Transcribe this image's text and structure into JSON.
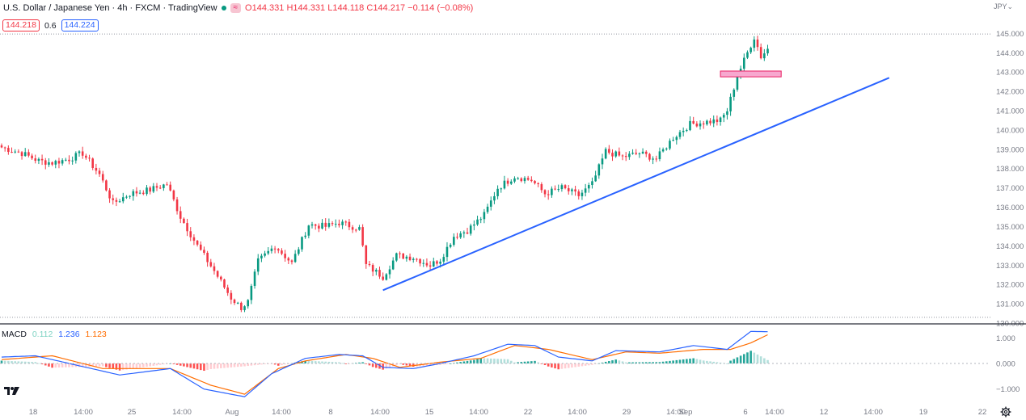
{
  "header": {
    "symbol_title": "U.S. Dollar / Japanese Yen · 4h · FXCM · TradingView",
    "indicator_pill": "≈",
    "ohlc": [
      {
        "k": "O",
        "v": "144.331"
      },
      {
        "k": "H",
        "v": "144.331"
      },
      {
        "k": "L",
        "v": "144.118"
      },
      {
        "k": "C",
        "v": "144.217"
      },
      {
        "k": "",
        "v": "−0.114 (−0.08%)"
      }
    ],
    "bid": "144.218",
    "spread": "0.6",
    "ask": "144.224",
    "currency": "JPY"
  },
  "macd_legend": {
    "name": "MACD",
    "hist": "0.112",
    "macd": "1.236",
    "signal": "1.123"
  },
  "chart_data": {
    "type": "candlestick",
    "symbol": "USD/JPY",
    "interval": "4h",
    "price_axis": {
      "ticks": [
        "145.000",
        "144.000",
        "143.000",
        "142.000",
        "141.000",
        "140.000",
        "139.000",
        "138.000",
        "137.000",
        "136.000",
        "135.000",
        "134.000",
        "133.000",
        "132.000",
        "131.000",
        "130.000"
      ],
      "ylim": [
        130.0,
        145.6
      ]
    },
    "macd_axis": {
      "ticks": [
        "1.000",
        "0.000",
        "−1.000"
      ],
      "ylim": [
        -1.45,
        1.45
      ]
    },
    "time_axis_labels": [
      "18",
      "14:00",
      "25",
      "14:00",
      "Aug",
      "14:00",
      "8",
      "14:00",
      "15",
      "14:00",
      "22",
      "14:00",
      "29",
      "14:00",
      "Sep",
      "6",
      "14:00",
      "12",
      "14:00",
      "19",
      "22"
    ],
    "anchors": [
      {
        "bar": 0,
        "p": 139.1
      },
      {
        "bar": 6,
        "p": 138.8
      },
      {
        "bar": 11,
        "p": 138.4
      },
      {
        "bar": 15,
        "p": 138.3
      },
      {
        "bar": 20,
        "p": 138.5
      },
      {
        "bar": 24,
        "p": 138.8
      },
      {
        "bar": 29,
        "p": 137.7
      },
      {
        "bar": 33,
        "p": 136.2
      },
      {
        "bar": 38,
        "p": 136.7
      },
      {
        "bar": 44,
        "p": 136.9
      },
      {
        "bar": 49,
        "p": 137.2
      },
      {
        "bar": 53,
        "p": 135.5
      },
      {
        "bar": 58,
        "p": 134.0
      },
      {
        "bar": 63,
        "p": 132.7
      },
      {
        "bar": 68,
        "p": 131.3
      },
      {
        "bar": 71,
        "p": 130.8
      },
      {
        "bar": 73,
        "p": 131.1
      },
      {
        "bar": 76,
        "p": 133.2
      },
      {
        "bar": 81,
        "p": 134.0
      },
      {
        "bar": 86,
        "p": 133.1
      },
      {
        "bar": 91,
        "p": 135.1
      },
      {
        "bar": 96,
        "p": 135.0
      },
      {
        "bar": 100,
        "p": 135.2
      },
      {
        "bar": 106,
        "p": 134.9
      },
      {
        "bar": 108,
        "p": 133.0
      },
      {
        "bar": 113,
        "p": 132.4
      },
      {
        "bar": 117,
        "p": 133.5
      },
      {
        "bar": 122,
        "p": 133.4
      },
      {
        "bar": 127,
        "p": 133.0
      },
      {
        "bar": 130,
        "p": 133.3
      },
      {
        "bar": 134,
        "p": 134.5
      },
      {
        "bar": 138,
        "p": 134.8
      },
      {
        "bar": 143,
        "p": 135.6
      },
      {
        "bar": 147,
        "p": 137.0
      },
      {
        "bar": 152,
        "p": 137.6
      },
      {
        "bar": 157,
        "p": 137.4
      },
      {
        "bar": 161,
        "p": 136.7
      },
      {
        "bar": 166,
        "p": 137.0
      },
      {
        "bar": 171,
        "p": 136.6
      },
      {
        "bar": 175,
        "p": 137.2
      },
      {
        "bar": 179,
        "p": 138.9
      },
      {
        "bar": 184,
        "p": 138.6
      },
      {
        "bar": 189,
        "p": 138.8
      },
      {
        "bar": 194,
        "p": 138.5
      },
      {
        "bar": 199,
        "p": 139.6
      },
      {
        "bar": 204,
        "p": 140.3
      },
      {
        "bar": 208,
        "p": 140.4
      },
      {
        "bar": 213,
        "p": 140.5
      },
      {
        "bar": 215,
        "p": 141.0
      },
      {
        "bar": 218,
        "p": 142.8
      },
      {
        "bar": 221,
        "p": 144.0
      },
      {
        "bar": 223,
        "p": 144.8
      },
      {
        "bar": 225,
        "p": 143.8
      },
      {
        "bar": 227,
        "p": 144.2
      }
    ],
    "bar_count": 228,
    "bar_axis_range": [
      0,
      293
    ],
    "macd_anchors": {
      "macd": [
        [
          0,
          0.25
        ],
        [
          10,
          0.3
        ],
        [
          20,
          0.0
        ],
        [
          35,
          -0.45
        ],
        [
          50,
          -0.2
        ],
        [
          60,
          -1.0
        ],
        [
          72,
          -1.3
        ],
        [
          80,
          -0.4
        ],
        [
          90,
          0.2
        ],
        [
          100,
          0.35
        ],
        [
          107,
          0.3
        ],
        [
          113,
          -0.15
        ],
        [
          122,
          -0.2
        ],
        [
          130,
          0.0
        ],
        [
          140,
          0.3
        ],
        [
          150,
          0.75
        ],
        [
          158,
          0.7
        ],
        [
          165,
          0.25
        ],
        [
          175,
          0.1
        ],
        [
          182,
          0.5
        ],
        [
          195,
          0.45
        ],
        [
          205,
          0.7
        ],
        [
          215,
          0.55
        ],
        [
          222,
          1.25
        ],
        [
          227,
          1.24
        ]
      ],
      "signal": [
        [
          0,
          0.15
        ],
        [
          15,
          0.3
        ],
        [
          30,
          -0.2
        ],
        [
          50,
          -0.2
        ],
        [
          62,
          -0.85
        ],
        [
          72,
          -1.2
        ],
        [
          82,
          -0.2
        ],
        [
          90,
          0.1
        ],
        [
          102,
          0.35
        ],
        [
          110,
          0.2
        ],
        [
          118,
          -0.15
        ],
        [
          130,
          0.05
        ],
        [
          142,
          0.2
        ],
        [
          152,
          0.7
        ],
        [
          162,
          0.55
        ],
        [
          175,
          0.15
        ],
        [
          185,
          0.45
        ],
        [
          195,
          0.4
        ],
        [
          208,
          0.55
        ],
        [
          216,
          0.55
        ],
        [
          222,
          0.8
        ],
        [
          227,
          1.12
        ]
      ]
    },
    "drawings": {
      "trendline": {
        "from": {
          "bar": 113,
          "p": 131.7
        },
        "to": {
          "bar": 263,
          "p": 142.7
        },
        "color": "#2962ff"
      },
      "zone": {
        "bar_from": 213,
        "bar_to": 231,
        "p_low": 142.75,
        "p_high": 143.05,
        "fill": "#f7a8cf",
        "stroke": "#e91e63"
      },
      "dotted_levels": [
        144.97,
        130.3
      ]
    },
    "colors": {
      "up": "#089981",
      "down": "#f23645",
      "macd": "#2962ff",
      "signal": "#ff6d00"
    },
    "grid": false
  }
}
